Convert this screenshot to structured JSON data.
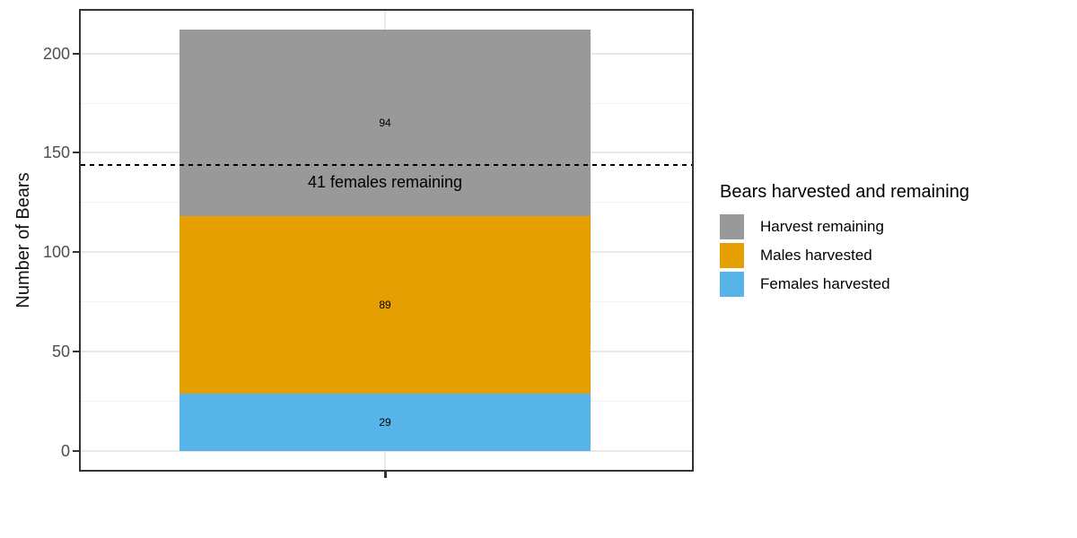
{
  "chart_data": {
    "type": "bar",
    "stacked": true,
    "title": "",
    "xlabel": "",
    "ylabel": "Number of Bears",
    "categories": [
      ""
    ],
    "series": [
      {
        "name": "Females harvested",
        "values": [
          29
        ],
        "color": "#56B4E9"
      },
      {
        "name": "Males harvested",
        "values": [
          89
        ],
        "color": "#E69F00"
      },
      {
        "name": "Harvest remaining",
        "values": [
          94
        ],
        "color": "#999999"
      }
    ],
    "total": 212,
    "ylim": [
      0,
      222
    ],
    "y_major_ticks": [
      0,
      50,
      100,
      150,
      200
    ],
    "y_minor_ticks": [
      25,
      75,
      125,
      175
    ],
    "grid": true,
    "annotation": {
      "text": "41 females remaining",
      "line_y": 144,
      "line_style": "dashed",
      "line_color": "#000000"
    },
    "legend": {
      "position": "right",
      "title": "Bears harvested and remaining",
      "entries": [
        {
          "label": "Harvest remaining",
          "color": "#999999"
        },
        {
          "label": "Males harvested",
          "color": "#E69F00"
        },
        {
          "label": "Females harvested",
          "color": "#56B4E9"
        }
      ]
    }
  },
  "colors": {
    "panel_border": "#333333",
    "grid_major": "#e8e8e8",
    "grid_minor": "#f3f3f3",
    "axis_text": "#4d4d4d",
    "axis_title": "#111111",
    "background": "#ffffff"
  }
}
